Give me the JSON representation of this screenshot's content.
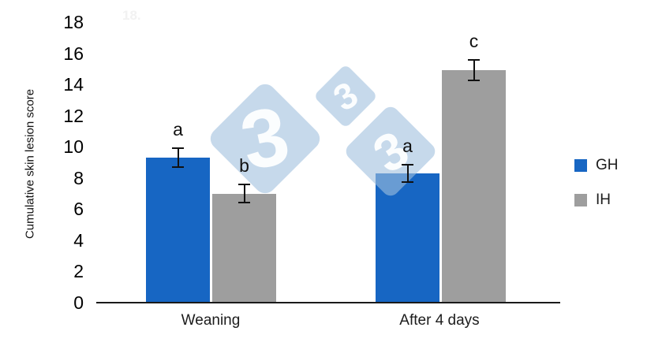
{
  "watermark": {
    "digit": "3",
    "ghost_text": "18.",
    "fill_color": "#C6D9EB"
  },
  "chart_data": {
    "type": "bar",
    "title": "",
    "xlabel": "",
    "ylabel": "Cumulative skin lesion score",
    "categories": [
      "Weaning",
      "After 4 days"
    ],
    "series": [
      {
        "name": "GH",
        "color": "#1766C3",
        "values": [
          9.3,
          8.3
        ],
        "errors": [
          0.65,
          0.6
        ],
        "sig_labels": [
          "a",
          "a"
        ]
      },
      {
        "name": "IH",
        "color": "#9E9E9E",
        "values": [
          7.0,
          14.9
        ],
        "errors": [
          0.65,
          0.7
        ],
        "sig_labels": [
          "b",
          "c"
        ]
      }
    ],
    "ylim": [
      0,
      18
    ],
    "yticks": [
      0,
      2,
      4,
      6,
      8,
      10,
      12,
      14,
      16,
      18
    ],
    "grid": false,
    "legend_position": "right",
    "error_bars": true
  },
  "legend": {
    "items": [
      {
        "label": "GH",
        "color": "#1766C3"
      },
      {
        "label": "IH",
        "color": "#9E9E9E"
      }
    ]
  }
}
